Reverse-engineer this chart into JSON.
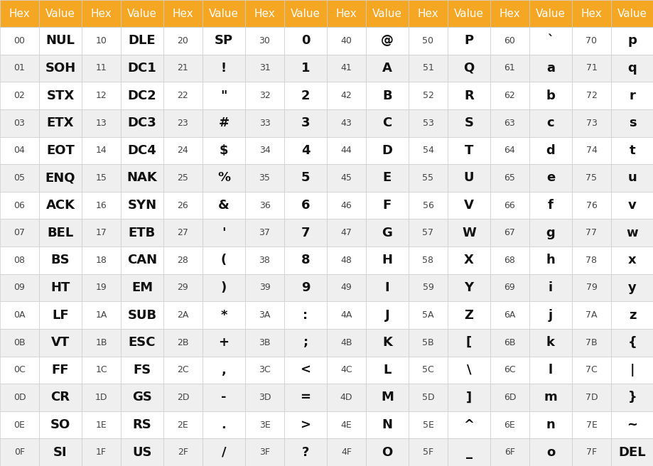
{
  "header_bg": "#F5A623",
  "header_text": "#FFFFFF",
  "row_bg_odd": "#FFFFFF",
  "row_bg_even": "#EFEFEF",
  "grid_color": "#CCCCCC",
  "hex_color": "#444444",
  "value_color": "#111111",
  "header_fontsize": 11,
  "hex_fontsize": 9,
  "value_fontsize": 13,
  "columns": [
    {
      "hex": "00",
      "value": "NUL"
    },
    {
      "hex": "01",
      "value": "SOH"
    },
    {
      "hex": "02",
      "value": "STX"
    },
    {
      "hex": "03",
      "value": "ETX"
    },
    {
      "hex": "04",
      "value": "EOT"
    },
    {
      "hex": "05",
      "value": "ENQ"
    },
    {
      "hex": "06",
      "value": "ACK"
    },
    {
      "hex": "07",
      "value": "BEL"
    },
    {
      "hex": "08",
      "value": "BS"
    },
    {
      "hex": "09",
      "value": "HT"
    },
    {
      "hex": "0A",
      "value": "LF"
    },
    {
      "hex": "0B",
      "value": "VT"
    },
    {
      "hex": "0C",
      "value": "FF"
    },
    {
      "hex": "0D",
      "value": "CR"
    },
    {
      "hex": "0E",
      "value": "SO"
    },
    {
      "hex": "0F",
      "value": "SI"
    },
    {
      "hex": "10",
      "value": "DLE"
    },
    {
      "hex": "11",
      "value": "DC1"
    },
    {
      "hex": "12",
      "value": "DC2"
    },
    {
      "hex": "13",
      "value": "DC3"
    },
    {
      "hex": "14",
      "value": "DC4"
    },
    {
      "hex": "15",
      "value": "NAK"
    },
    {
      "hex": "16",
      "value": "SYN"
    },
    {
      "hex": "17",
      "value": "ETB"
    },
    {
      "hex": "18",
      "value": "CAN"
    },
    {
      "hex": "19",
      "value": "EM"
    },
    {
      "hex": "1A",
      "value": "SUB"
    },
    {
      "hex": "1B",
      "value": "ESC"
    },
    {
      "hex": "1C",
      "value": "FS"
    },
    {
      "hex": "1D",
      "value": "GS"
    },
    {
      "hex": "1E",
      "value": "RS"
    },
    {
      "hex": "1F",
      "value": "US"
    },
    {
      "hex": "20",
      "value": "SP"
    },
    {
      "hex": "21",
      "value": "!"
    },
    {
      "hex": "22",
      "value": "\""
    },
    {
      "hex": "23",
      "value": "#"
    },
    {
      "hex": "24",
      "value": "$"
    },
    {
      "hex": "25",
      "value": "%"
    },
    {
      "hex": "26",
      "value": "&"
    },
    {
      "hex": "27",
      "value": "'"
    },
    {
      "hex": "28",
      "value": "("
    },
    {
      "hex": "29",
      "value": ")"
    },
    {
      "hex": "2A",
      "value": "*"
    },
    {
      "hex": "2B",
      "value": "+"
    },
    {
      "hex": "2C",
      "value": ","
    },
    {
      "hex": "2D",
      "value": "-"
    },
    {
      "hex": "2E",
      "value": "."
    },
    {
      "hex": "2F",
      "value": "/"
    },
    {
      "hex": "30",
      "value": "0"
    },
    {
      "hex": "31",
      "value": "1"
    },
    {
      "hex": "32",
      "value": "2"
    },
    {
      "hex": "33",
      "value": "3"
    },
    {
      "hex": "34",
      "value": "4"
    },
    {
      "hex": "35",
      "value": "5"
    },
    {
      "hex": "36",
      "value": "6"
    },
    {
      "hex": "37",
      "value": "7"
    },
    {
      "hex": "38",
      "value": "8"
    },
    {
      "hex": "39",
      "value": "9"
    },
    {
      "hex": "3A",
      "value": ":"
    },
    {
      "hex": "3B",
      "value": ";"
    },
    {
      "hex": "3C",
      "value": "<"
    },
    {
      "hex": "3D",
      "value": "="
    },
    {
      "hex": "3E",
      "value": ">"
    },
    {
      "hex": "3F",
      "value": "?"
    },
    {
      "hex": "40",
      "value": "@"
    },
    {
      "hex": "41",
      "value": "A"
    },
    {
      "hex": "42",
      "value": "B"
    },
    {
      "hex": "43",
      "value": "C"
    },
    {
      "hex": "44",
      "value": "D"
    },
    {
      "hex": "45",
      "value": "E"
    },
    {
      "hex": "46",
      "value": "F"
    },
    {
      "hex": "47",
      "value": "G"
    },
    {
      "hex": "48",
      "value": "H"
    },
    {
      "hex": "49",
      "value": "I"
    },
    {
      "hex": "4A",
      "value": "J"
    },
    {
      "hex": "4B",
      "value": "K"
    },
    {
      "hex": "4C",
      "value": "L"
    },
    {
      "hex": "4D",
      "value": "M"
    },
    {
      "hex": "4E",
      "value": "N"
    },
    {
      "hex": "4F",
      "value": "O"
    },
    {
      "hex": "50",
      "value": "P"
    },
    {
      "hex": "51",
      "value": "Q"
    },
    {
      "hex": "52",
      "value": "R"
    },
    {
      "hex": "53",
      "value": "S"
    },
    {
      "hex": "54",
      "value": "T"
    },
    {
      "hex": "55",
      "value": "U"
    },
    {
      "hex": "56",
      "value": "V"
    },
    {
      "hex": "57",
      "value": "W"
    },
    {
      "hex": "58",
      "value": "X"
    },
    {
      "hex": "59",
      "value": "Y"
    },
    {
      "hex": "5A",
      "value": "Z"
    },
    {
      "hex": "5B",
      "value": "["
    },
    {
      "hex": "5C",
      "value": "\\"
    },
    {
      "hex": "5D",
      "value": "]"
    },
    {
      "hex": "5E",
      "value": "^"
    },
    {
      "hex": "5F",
      "value": "_"
    },
    {
      "hex": "60",
      "value": "`"
    },
    {
      "hex": "61",
      "value": "a"
    },
    {
      "hex": "62",
      "value": "b"
    },
    {
      "hex": "63",
      "value": "c"
    },
    {
      "hex": "64",
      "value": "d"
    },
    {
      "hex": "65",
      "value": "e"
    },
    {
      "hex": "66",
      "value": "f"
    },
    {
      "hex": "67",
      "value": "g"
    },
    {
      "hex": "68",
      "value": "h"
    },
    {
      "hex": "69",
      "value": "i"
    },
    {
      "hex": "6A",
      "value": "j"
    },
    {
      "hex": "6B",
      "value": "k"
    },
    {
      "hex": "6C",
      "value": "l"
    },
    {
      "hex": "6D",
      "value": "m"
    },
    {
      "hex": "6E",
      "value": "n"
    },
    {
      "hex": "6F",
      "value": "o"
    },
    {
      "hex": "70",
      "value": "p"
    },
    {
      "hex": "71",
      "value": "q"
    },
    {
      "hex": "72",
      "value": "r"
    },
    {
      "hex": "73",
      "value": "s"
    },
    {
      "hex": "74",
      "value": "t"
    },
    {
      "hex": "75",
      "value": "u"
    },
    {
      "hex": "76",
      "value": "v"
    },
    {
      "hex": "77",
      "value": "w"
    },
    {
      "hex": "78",
      "value": "x"
    },
    {
      "hex": "79",
      "value": "y"
    },
    {
      "hex": "7A",
      "value": "z"
    },
    {
      "hex": "7B",
      "value": "{"
    },
    {
      "hex": "7C",
      "value": "|"
    },
    {
      "hex": "7D",
      "value": "}"
    },
    {
      "hex": "7E",
      "value": "~"
    },
    {
      "hex": "7F",
      "value": "DEL"
    }
  ],
  "num_groups": 8,
  "rows_per_group": 16,
  "fig_width": 9.2,
  "fig_height": 6.56,
  "dpi": 100
}
